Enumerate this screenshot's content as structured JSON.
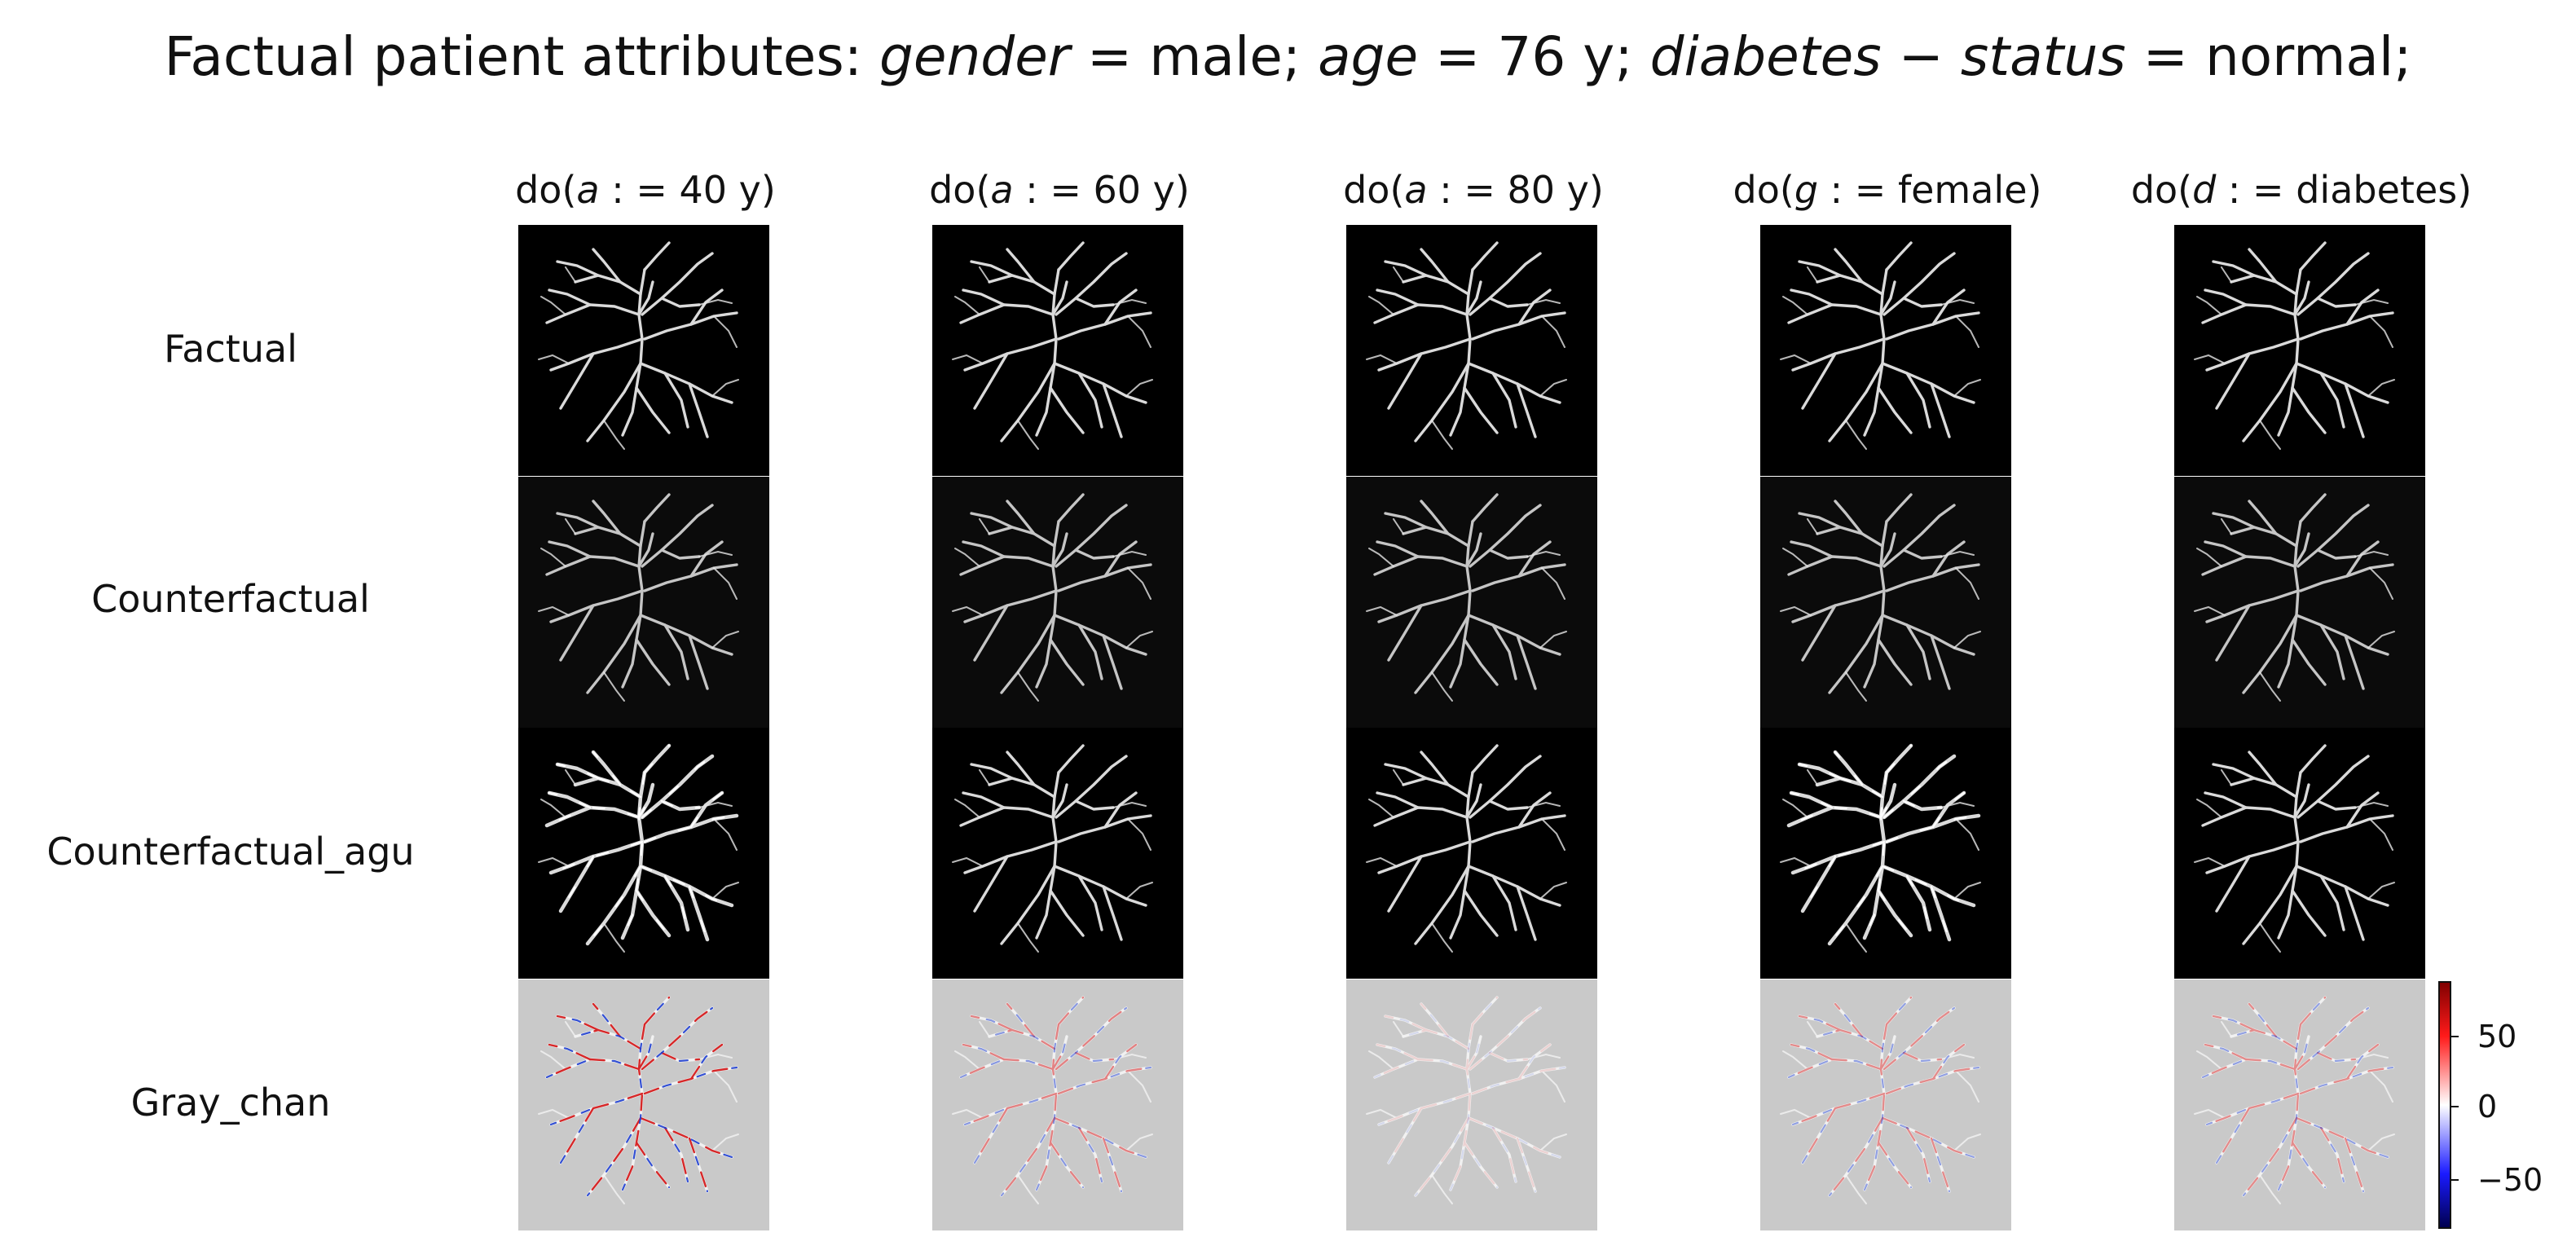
{
  "figure": {
    "title": {
      "prefix": "Factual patient attributes: ",
      "attrs": [
        {
          "name": "gender",
          "op": " = ",
          "value": "male",
          "sep": "; "
        },
        {
          "name": "age",
          "op": " = ",
          "value": "76 y",
          "sep": "; "
        },
        {
          "name": "diabetes − status",
          "op": " = ",
          "value": "normal",
          "sep": ";"
        }
      ]
    },
    "columns": [
      {
        "fn": "do(",
        "var": "a",
        "assign": " : = ",
        "value": "40 y",
        "close": ")"
      },
      {
        "fn": "do(",
        "var": "a",
        "assign": " : = ",
        "value": "60 y",
        "close": ")"
      },
      {
        "fn": "do(",
        "var": "a",
        "assign": " : = ",
        "value": "80 y",
        "close": ")"
      },
      {
        "fn": "do(",
        "var": "g",
        "assign": " : = ",
        "value": "female",
        "close": ")"
      },
      {
        "fn": "do(",
        "var": "d",
        "assign": " : = ",
        "value": "diabetes",
        "close": ")"
      }
    ],
    "rows": [
      "Factual",
      "Counterfactual",
      "Counterfactual_agu",
      "Gray_chan"
    ],
    "colorbar": {
      "cmap": "seismic",
      "ticks": [
        "50",
        "0",
        "−50"
      ],
      "tick_values": [
        50,
        0,
        -50
      ],
      "range": [
        -85,
        85
      ],
      "colors": {
        "top": "#7f0000",
        "upper": "#ff0000",
        "mid": "#ffffff",
        "lower": "#0000ff",
        "bottom": "#00004c"
      }
    },
    "colors": {
      "panel_dark": "#000000",
      "panel_counterfactual": "#0b0b0b",
      "panel_gray": "#c9c9c9",
      "vessel": "#e6e6e6",
      "diff_red": "#d62728",
      "diff_blue": "#1f3fd0"
    }
  }
}
